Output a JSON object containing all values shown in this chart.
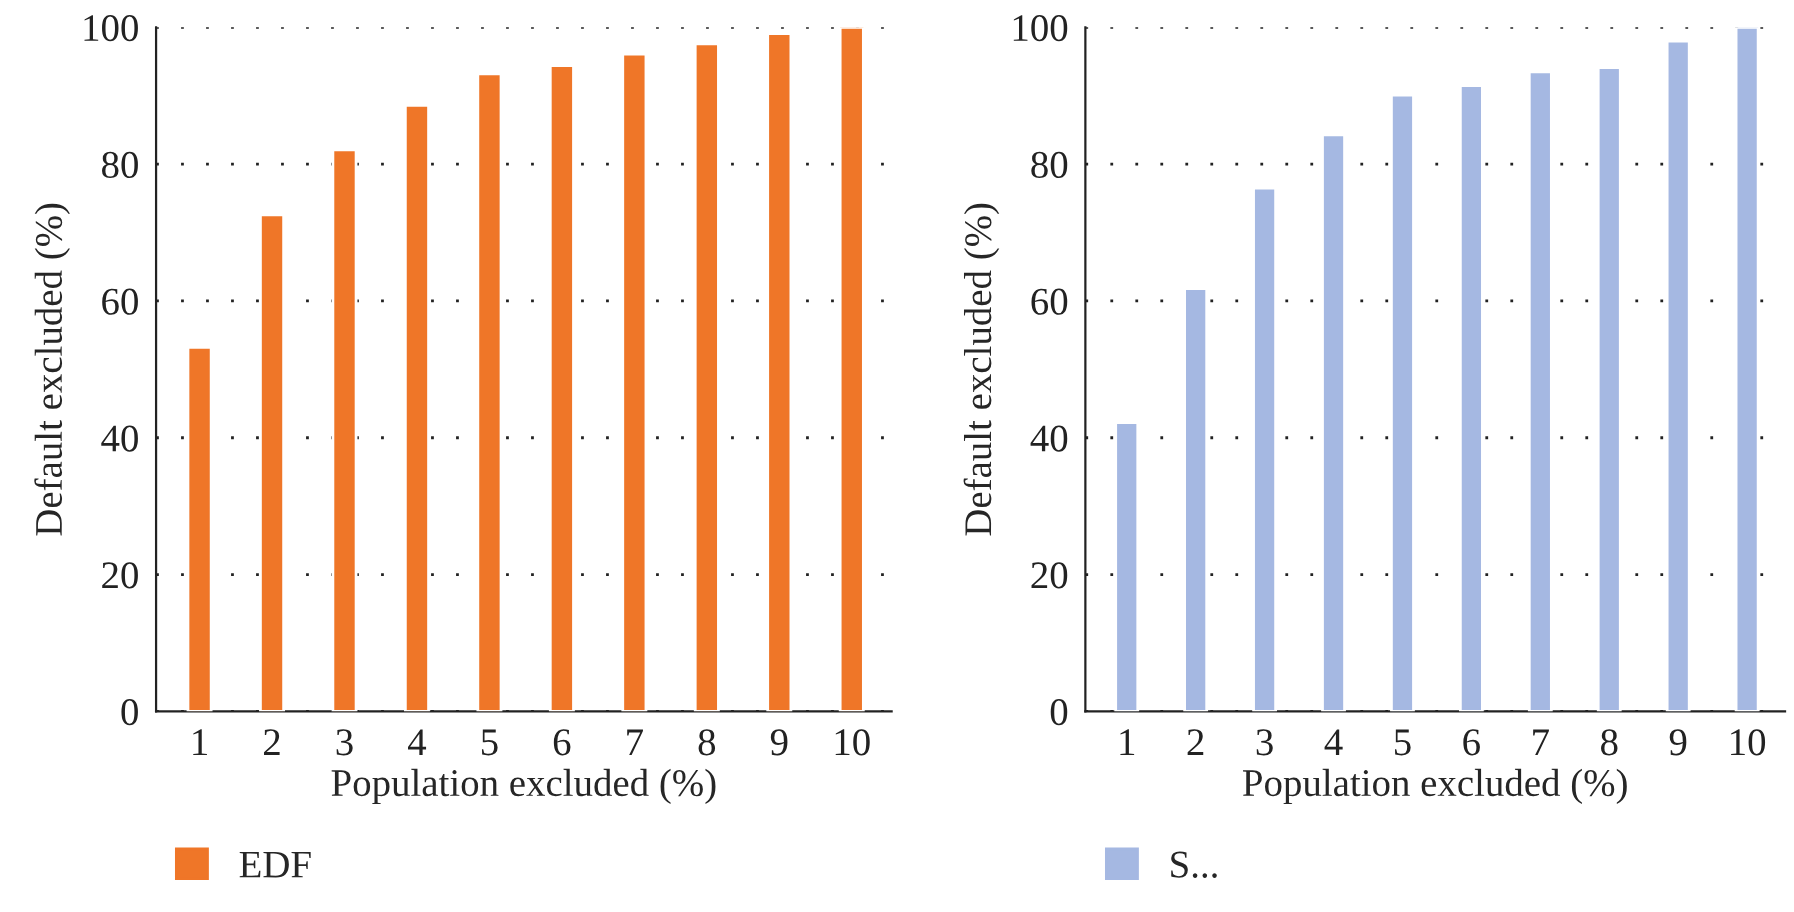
{
  "chart_data": [
    {
      "type": "bar",
      "categories": [
        "1",
        "2",
        "3",
        "4",
        "5",
        "6",
        "7",
        "8",
        "9",
        "10"
      ],
      "xlabel": "Population excluded (%)",
      "ylabel": "Default excluded (%)",
      "ylim": [
        0,
        100
      ],
      "yticks": [
        0,
        20,
        40,
        60,
        80,
        100
      ],
      "grid": "y",
      "legend": "bottom left",
      "series": [
        {
          "name": "EDF",
          "color": "#ef7628",
          "values": [
            53.2,
            72.6,
            82.1,
            88.6,
            93.2,
            94.4,
            96.1,
            97.6,
            99.1,
            100
          ]
        }
      ]
    },
    {
      "type": "bar",
      "categories": [
        "1",
        "2",
        "3",
        "4",
        "5",
        "6",
        "7",
        "8",
        "9",
        "10"
      ],
      "xlabel": "Population excluded (%)",
      "ylabel": "Default excluded (%)",
      "ylim": [
        0,
        100
      ],
      "yticks": [
        0,
        20,
        40,
        60,
        80,
        100
      ],
      "grid": "y",
      "legend": "bottom left",
      "series": [
        {
          "name": "S...",
          "color": "#a5b8e2",
          "values": [
            42.2,
            61.8,
            76.5,
            84.3,
            90.1,
            91.5,
            93.5,
            94.1,
            98.0,
            100
          ]
        }
      ]
    }
  ]
}
